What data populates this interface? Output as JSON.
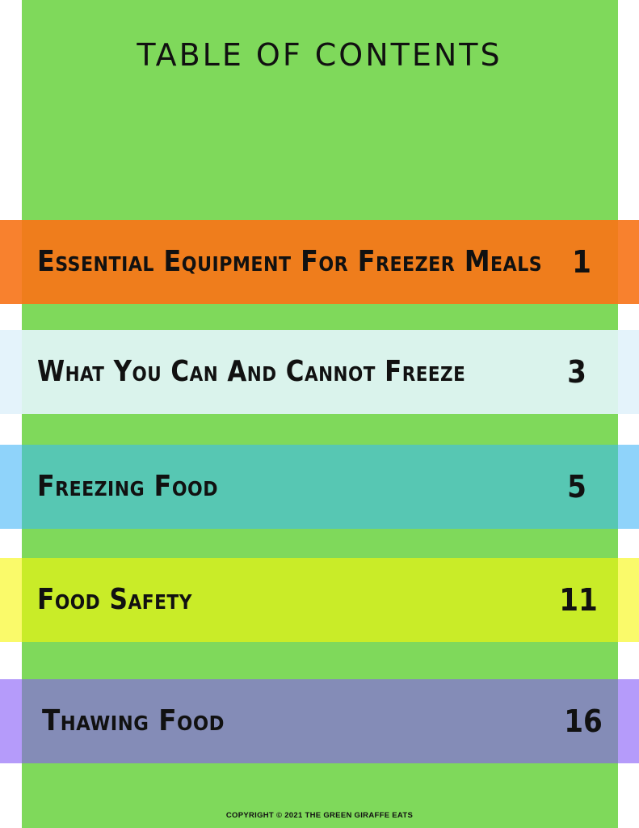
{
  "title": "TABLE OF CONTENTS",
  "colors": {
    "background": "#ffffff",
    "panel": "#7fd95b"
  },
  "entries": [
    {
      "label": "Essential Equipment For Freezer Meals",
      "page": "1",
      "band_color": "#ef7d1c",
      "edge_color": "#f8812e"
    },
    {
      "label": "What You Can And Cannot Freeze",
      "page": "3",
      "band_color": "#daf3ec",
      "edge_color": "#e4f3fb"
    },
    {
      "label": "Freezing Food",
      "page": "5",
      "band_color": "#57c7b3",
      "edge_color": "#8fd3fa"
    },
    {
      "label": "Food Safety",
      "page": "11",
      "band_color": "#c9ec28",
      "edge_color": "#fafa6a"
    },
    {
      "label": "Thawing Food",
      "page": "16",
      "band_color": "#848cb7",
      "edge_color": "#b59bfa"
    }
  ],
  "copyright": "COPYRIGHT © 2021 THE GREEN GIRAFFE EATS"
}
